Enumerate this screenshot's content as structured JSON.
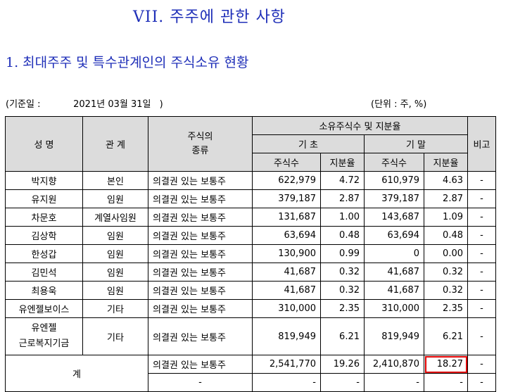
{
  "titles": {
    "main": "VII. 주주에 관한 사항",
    "sub": "1. 최대주주 및 특수관계인의 주식소유 현황"
  },
  "meta": {
    "base_date_label": "(기준일 :",
    "base_date_value": "2021년 03월 31일",
    "base_date_close": ")",
    "unit": "(단위 : 주, %)"
  },
  "headers": {
    "name": "성 명",
    "relation": "관 계",
    "stock_type": "주식의\n종류",
    "holdings": "소유주식수 및 지분율",
    "start": "기 초",
    "end": "기 말",
    "shares": "주식수",
    "ratio": "지분율",
    "note": "비고"
  },
  "rows": [
    {
      "name": "박지향",
      "relation": "본인",
      "type": "의결권 있는 보통주",
      "start_shares": "622,979",
      "start_ratio": "4.72",
      "end_shares": "610,979",
      "end_ratio": "4.63",
      "note": "-"
    },
    {
      "name": "유지원",
      "relation": "임원",
      "type": "의결권 있는 보통주",
      "start_shares": "379,187",
      "start_ratio": "2.87",
      "end_shares": "379,187",
      "end_ratio": "2.87",
      "note": "-"
    },
    {
      "name": "차문호",
      "relation": "계열사임원",
      "type": "의결권 있는 보통주",
      "start_shares": "131,687",
      "start_ratio": "1.00",
      "end_shares": "143,687",
      "end_ratio": "1.09",
      "note": "-"
    },
    {
      "name": "김상학",
      "relation": "임원",
      "type": "의결권 있는 보통주",
      "start_shares": "63,694",
      "start_ratio": "0.48",
      "end_shares": "63,694",
      "end_ratio": "0.48",
      "note": "-"
    },
    {
      "name": "한성갑",
      "relation": "임원",
      "type": "의결권 있는 보통주",
      "start_shares": "130,900",
      "start_ratio": "0.99",
      "end_shares": "0",
      "end_ratio": "0.00",
      "note": "-"
    },
    {
      "name": "김민석",
      "relation": "임원",
      "type": "의결권 있는 보통주",
      "start_shares": "41,687",
      "start_ratio": "0.32",
      "end_shares": "41,687",
      "end_ratio": "0.32",
      "note": "-"
    },
    {
      "name": "최용욱",
      "relation": "임원",
      "type": "의결권 있는 보통주",
      "start_shares": "41,687",
      "start_ratio": "0.32",
      "end_shares": "41,687",
      "end_ratio": "0.32",
      "note": "-"
    },
    {
      "name": "유엔젤보이스",
      "relation": "기타",
      "type": "의결권 있는 보통주",
      "start_shares": "310,000",
      "start_ratio": "2.35",
      "end_shares": "310,000",
      "end_ratio": "2.35",
      "note": "-"
    },
    {
      "name": "유엔젤\n근로복지기금",
      "relation": "기타",
      "type": "의결권 있는 보통주",
      "start_shares": "819,949",
      "start_ratio": "6.21",
      "end_shares": "819,949",
      "end_ratio": "6.21",
      "note": "-"
    }
  ],
  "total": {
    "label": "계",
    "rows": [
      {
        "type": "의결권 있는 보통주",
        "start_shares": "2,541,770",
        "start_ratio": "19.26",
        "end_shares": "2,410,870",
        "end_ratio": "18.27",
        "note": "-"
      },
      {
        "type": "-",
        "start_shares": "-",
        "start_ratio": "-",
        "end_shares": "-",
        "end_ratio": "-",
        "note": "-"
      }
    ]
  }
}
